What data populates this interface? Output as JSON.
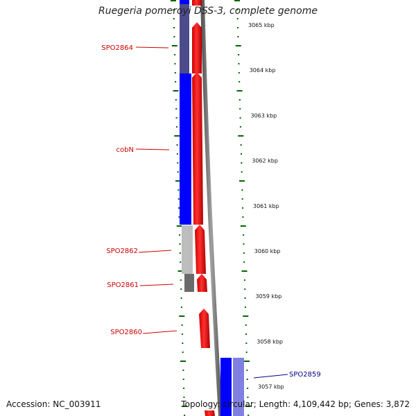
{
  "title": "Ruegeria pomeroyi DSS-3, complete genome",
  "accession_text": "Accession: NC_003911",
  "topology_text": "Topology: circular; Length: 4,109,442 bp; Genes: 3,872",
  "colors": {
    "reverse_cds": "#0000ff",
    "forward_cds": "#ff0000",
    "backbone": "#808080",
    "tick": "#006400",
    "label_forward": "#cc0000",
    "label_reverse": "#00008b",
    "dark_blue_block": "#4c4c8c",
    "gray_block": "#bdbdbd",
    "dark_gray_block": "#6a6a6a",
    "light_blue_block": "#8080e0"
  },
  "ruler": [
    {
      "label": "3065 kbp",
      "kbp": 3065
    },
    {
      "label": "3064 kbp",
      "kbp": 3064
    },
    {
      "label": "3063 kbp",
      "kbp": 3063
    },
    {
      "label": "3062 kbp",
      "kbp": 3062
    },
    {
      "label": "3061 kbp",
      "kbp": 3061
    },
    {
      "label": "3060 kbp",
      "kbp": 3060
    },
    {
      "label": "3059 kbp",
      "kbp": 3059
    },
    {
      "label": "3058 kbp",
      "kbp": 3058
    },
    {
      "label": "3057 kbp",
      "kbp": 3057
    }
  ],
  "genes": [
    {
      "name": "SPO2864",
      "strand": "forward"
    },
    {
      "name": "cobN",
      "strand": "forward"
    },
    {
      "name": "SPO2862",
      "strand": "forward"
    },
    {
      "name": "SPO2861",
      "strand": "forward"
    },
    {
      "name": "SPO2860",
      "strand": "forward"
    },
    {
      "name": "SPO2859",
      "strand": "reverse"
    }
  ]
}
